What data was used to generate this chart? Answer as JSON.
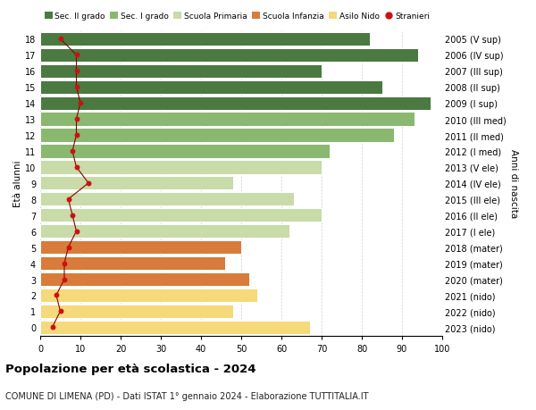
{
  "ages": [
    0,
    1,
    2,
    3,
    4,
    5,
    6,
    7,
    8,
    9,
    10,
    11,
    12,
    13,
    14,
    15,
    16,
    17,
    18
  ],
  "right_labels": [
    "2023 (nido)",
    "2022 (nido)",
    "2021 (nido)",
    "2020 (mater)",
    "2019 (mater)",
    "2018 (mater)",
    "2017 (I ele)",
    "2016 (II ele)",
    "2015 (III ele)",
    "2014 (IV ele)",
    "2013 (V ele)",
    "2012 (I med)",
    "2011 (II med)",
    "2010 (III med)",
    "2009 (I sup)",
    "2008 (II sup)",
    "2007 (III sup)",
    "2006 (IV sup)",
    "2005 (V sup)"
  ],
  "bar_values": [
    67,
    48,
    54,
    52,
    46,
    50,
    62,
    70,
    63,
    48,
    70,
    72,
    88,
    93,
    97,
    85,
    70,
    94,
    82
  ],
  "bar_colors": [
    "#f5d97a",
    "#f5d97a",
    "#f5d97a",
    "#d97b3a",
    "#d97b3a",
    "#d97b3a",
    "#c8dba8",
    "#c8dba8",
    "#c8dba8",
    "#c8dba8",
    "#c8dba8",
    "#8ab870",
    "#8ab870",
    "#8ab870",
    "#4a7a40",
    "#4a7a40",
    "#4a7a40",
    "#4a7a40",
    "#4a7a40"
  ],
  "stranieri_values": [
    3,
    5,
    4,
    6,
    6,
    7,
    9,
    8,
    7,
    12,
    9,
    8,
    9,
    9,
    10,
    9,
    9,
    9,
    5
  ],
  "legend_labels": [
    "Sec. II grado",
    "Sec. I grado",
    "Scuola Primaria",
    "Scuola Infanzia",
    "Asilo Nido",
    "Stranieri"
  ],
  "legend_colors": [
    "#4a7a40",
    "#8ab870",
    "#c8dba8",
    "#d97b3a",
    "#f5d97a",
    "#cc1111"
  ],
  "title": "Popolazione per età scolastica - 2024",
  "subtitle": "COMUNE DI LIMENA (PD) - Dati ISTAT 1° gennaio 2024 - Elaborazione TUTTITALIA.IT",
  "xlabel_left": "Età alunni",
  "xlabel_right": "Anni di nascita",
  "xlim": [
    0,
    100
  ],
  "background_color": "#ffffff",
  "grid_color": "#d0d0d0"
}
